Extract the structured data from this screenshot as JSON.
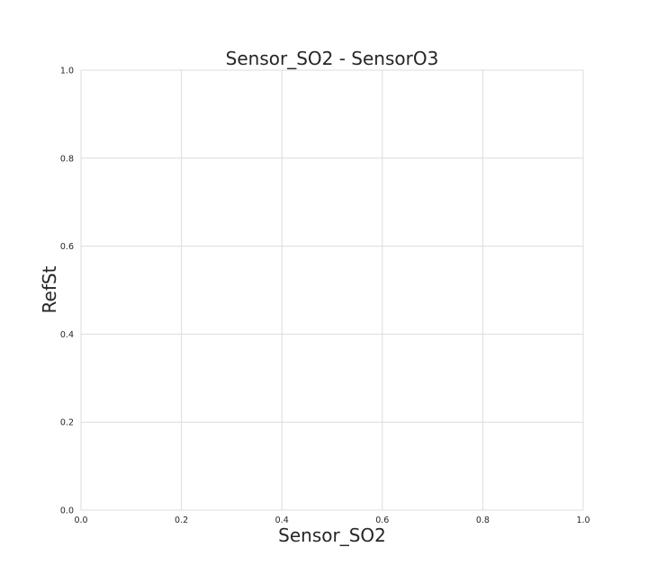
{
  "chart_data": {
    "type": "scatter",
    "title": "Sensor_SO2 - SensorO3",
    "xlabel": "Sensor_SO2",
    "ylabel": "RefSt",
    "xlim": [
      0.0,
      1.0
    ],
    "ylim": [
      0.0,
      1.0
    ],
    "x_ticks": [
      "0.0",
      "0.2",
      "0.4",
      "0.6",
      "0.8",
      "1.0"
    ],
    "y_ticks": [
      "0.0",
      "0.2",
      "0.4",
      "0.6",
      "0.8",
      "1.0"
    ],
    "grid": true,
    "series": [],
    "colors": {
      "background": "#ffffff",
      "grid": "#dcdcdc",
      "text": "#262626"
    }
  }
}
